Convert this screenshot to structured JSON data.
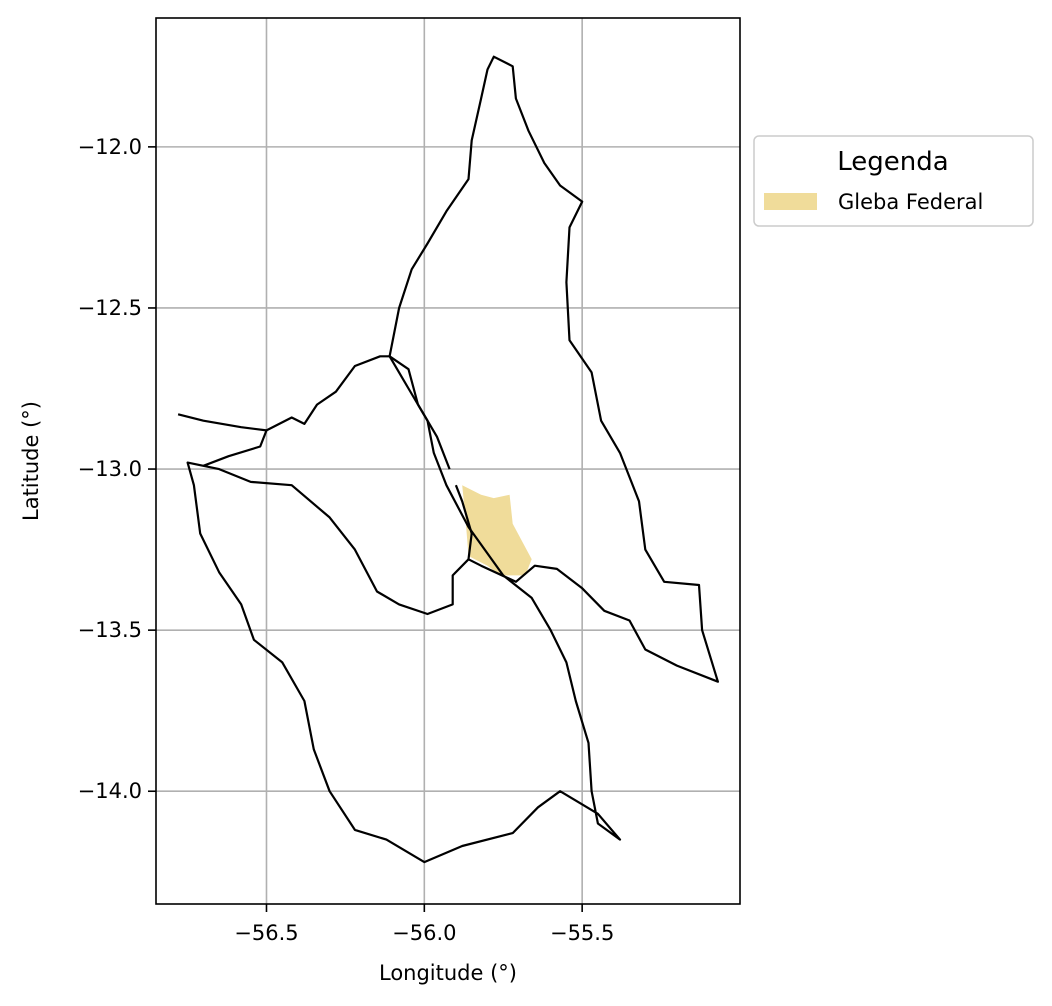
{
  "chart_data": {
    "type": "map",
    "xlabel": "Longitude (°)",
    "ylabel": "Latitude (°)",
    "xlim": [
      -56.85,
      -55.0
    ],
    "ylim": [
      -14.35,
      -11.6
    ],
    "xticks": [
      -56.5,
      -56.0,
      -55.5
    ],
    "xtick_labels": [
      "−56.5",
      "−56.0",
      "−55.5"
    ],
    "yticks": [
      -12.0,
      -12.5,
      -13.0,
      -13.5,
      -14.0
    ],
    "ytick_labels": [
      "−12.0",
      "−12.5",
      "−13.0",
      "−13.5",
      "−14.0"
    ],
    "grid": true,
    "legend": {
      "title": "Legenda",
      "placement": "outside-right-top",
      "entries": [
        {
          "label": "Gleba Federal",
          "color": "#f0dc9a"
        }
      ]
    },
    "colors": {
      "boundary": "#000000",
      "gleba_fill": "#f0dc9a",
      "grid": "#b0b0b0"
    },
    "features": {
      "outer_boundary": [
        [
          -55.78,
          -11.72
        ],
        [
          -55.72,
          -11.75
        ],
        [
          -55.71,
          -11.85
        ],
        [
          -55.67,
          -11.95
        ],
        [
          -55.62,
          -12.05
        ],
        [
          -55.57,
          -12.12
        ],
        [
          -55.5,
          -12.17
        ],
        [
          -55.54,
          -12.25
        ],
        [
          -55.55,
          -12.42
        ],
        [
          -55.54,
          -12.6
        ],
        [
          -55.47,
          -12.7
        ],
        [
          -55.44,
          -12.85
        ],
        [
          -55.38,
          -12.95
        ],
        [
          -55.32,
          -13.1
        ],
        [
          -55.3,
          -13.25
        ],
        [
          -55.24,
          -13.35
        ],
        [
          -55.13,
          -13.36
        ],
        [
          -55.12,
          -13.5
        ],
        [
          -55.07,
          -13.66
        ],
        [
          -55.2,
          -13.61
        ],
        [
          -55.3,
          -13.56
        ],
        [
          -55.35,
          -13.47
        ],
        [
          -55.43,
          -13.44
        ],
        [
          -55.5,
          -13.37
        ],
        [
          -55.58,
          -13.31
        ],
        [
          -55.65,
          -13.3
        ],
        [
          -55.71,
          -13.35
        ],
        [
          -55.82,
          -13.3
        ],
        [
          -55.86,
          -13.28
        ],
        [
          -55.91,
          -13.33
        ],
        [
          -55.91,
          -13.42
        ],
        [
          -55.99,
          -13.45
        ],
        [
          -56.08,
          -13.42
        ],
        [
          -56.15,
          -13.38
        ],
        [
          -56.22,
          -13.25
        ],
        [
          -56.3,
          -13.15
        ],
        [
          -56.42,
          -13.05
        ],
        [
          -56.55,
          -13.04
        ],
        [
          -56.65,
          -13.0
        ],
        [
          -56.75,
          -12.98
        ],
        [
          -56.73,
          -13.05
        ],
        [
          -56.71,
          -13.2
        ],
        [
          -56.65,
          -13.32
        ],
        [
          -56.58,
          -13.42
        ],
        [
          -56.54,
          -13.53
        ],
        [
          -56.45,
          -13.6
        ],
        [
          -56.38,
          -13.72
        ],
        [
          -56.35,
          -13.87
        ],
        [
          -56.3,
          -14.0
        ],
        [
          -56.22,
          -14.12
        ],
        [
          -56.12,
          -14.15
        ],
        [
          -56.0,
          -14.22
        ],
        [
          -55.88,
          -14.17
        ],
        [
          -55.72,
          -14.13
        ],
        [
          -55.64,
          -14.05
        ],
        [
          -55.57,
          -14.0
        ],
        [
          -55.45,
          -14.07
        ],
        [
          -55.38,
          -14.15
        ],
        [
          -55.45,
          -14.1
        ],
        [
          -55.47,
          -14.0
        ],
        [
          -55.48,
          -13.85
        ],
        [
          -55.52,
          -13.72
        ],
        [
          -55.55,
          -13.6
        ],
        [
          -55.6,
          -13.5
        ],
        [
          -55.66,
          -13.4
        ],
        [
          -55.75,
          -13.33
        ],
        [
          -55.86,
          -13.18
        ],
        [
          -55.93,
          -13.05
        ],
        [
          -55.97,
          -12.95
        ],
        [
          -55.99,
          -12.85
        ],
        [
          -56.05,
          -12.75
        ],
        [
          -56.11,
          -12.65
        ],
        [
          -56.08,
          -12.5
        ],
        [
          -56.04,
          -12.38
        ],
        [
          -55.99,
          -12.3
        ],
        [
          -55.93,
          -12.2
        ],
        [
          -55.86,
          -12.1
        ],
        [
          -55.85,
          -11.98
        ],
        [
          -55.82,
          -11.85
        ],
        [
          -55.8,
          -11.76
        ],
        [
          -55.78,
          -11.72
        ]
      ],
      "internal_boundaries": [
        [
          [
            -56.78,
            -12.83
          ],
          [
            -56.7,
            -12.85
          ],
          [
            -56.58,
            -12.87
          ],
          [
            -56.5,
            -12.88
          ],
          [
            -56.42,
            -12.84
          ],
          [
            -56.38,
            -12.86
          ],
          [
            -56.34,
            -12.8
          ],
          [
            -56.28,
            -12.76
          ],
          [
            -56.22,
            -12.68
          ],
          [
            -56.14,
            -12.65
          ],
          [
            -56.11,
            -12.65
          ]
        ],
        [
          [
            -56.7,
            -12.99
          ],
          [
            -56.62,
            -12.96
          ],
          [
            -56.52,
            -12.93
          ],
          [
            -56.5,
            -12.88
          ]
        ],
        [
          [
            -56.11,
            -12.65
          ],
          [
            -56.05,
            -12.69
          ],
          [
            -56.02,
            -12.8
          ],
          [
            -55.96,
            -12.9
          ],
          [
            -55.92,
            -13.0
          ]
        ],
        [
          [
            -55.86,
            -13.28
          ],
          [
            -55.85,
            -13.2
          ],
          [
            -55.88,
            -13.1
          ],
          [
            -55.9,
            -13.05
          ]
        ]
      ],
      "gleba_federal": [
        [
          -55.88,
          -13.05
        ],
        [
          -55.82,
          -13.08
        ],
        [
          -55.78,
          -13.09
        ],
        [
          -55.73,
          -13.08
        ],
        [
          -55.72,
          -13.17
        ],
        [
          -55.66,
          -13.28
        ],
        [
          -55.68,
          -13.33
        ],
        [
          -55.76,
          -13.33
        ],
        [
          -55.8,
          -13.3
        ],
        [
          -55.86,
          -13.27
        ],
        [
          -55.87,
          -13.15
        ]
      ]
    }
  }
}
